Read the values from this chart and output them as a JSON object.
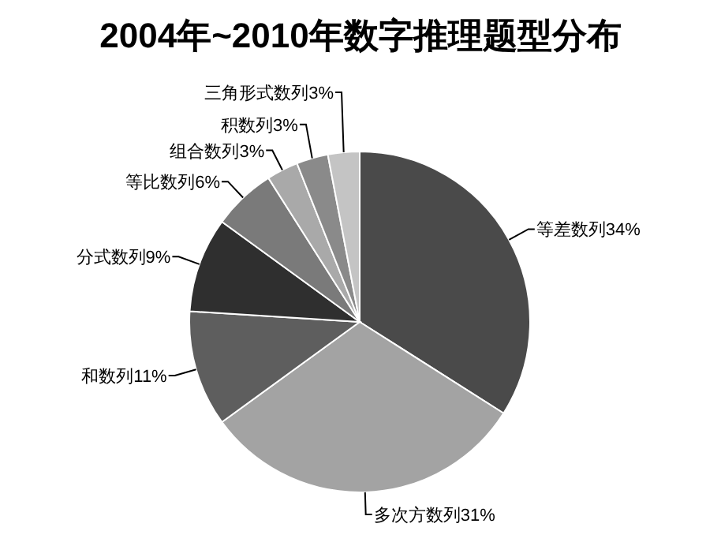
{
  "chart_data": {
    "type": "pie",
    "title": "2004年~2010年数字推理题型分布",
    "categories": [
      "等差数列",
      "多次方数列",
      "和数列",
      "分式数列",
      "等比数列",
      "组合数列",
      "积数列",
      "三角形式数列"
    ],
    "values": [
      34,
      31,
      11,
      9,
      6,
      3,
      3,
      3
    ],
    "value_labels": [
      "34%",
      "31%",
      "11%",
      "9%",
      "6%",
      "3%",
      "3%",
      "3%"
    ],
    "colors": [
      "#4a4a4a",
      "#a3a3a3",
      "#5e5e5e",
      "#2f2f2f",
      "#7a7a7a",
      "#a9a9a9",
      "#8a8a8a",
      "#c4c4c4"
    ]
  }
}
